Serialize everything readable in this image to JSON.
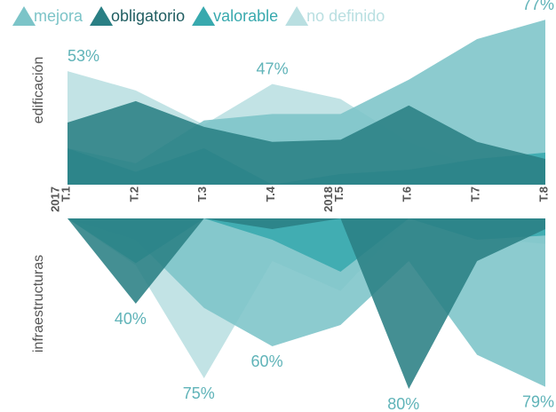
{
  "chart_data": [
    {
      "type": "area",
      "y_label": "edificación",
      "ylim": [
        0,
        80
      ],
      "inverted": false,
      "categories": [
        "T.1",
        "T.2",
        "T.3",
        "T.4",
        "T.5",
        "T.6",
        "T.7",
        "T.8"
      ],
      "years": [
        "2017",
        null,
        null,
        null,
        "2018",
        null,
        null,
        null
      ],
      "series": [
        {
          "name": "no definido",
          "color": "#b9dfe1",
          "values": [
            53,
            44,
            28,
            47,
            40,
            20,
            8,
            5
          ],
          "value_labels": [
            "53%",
            null,
            null,
            "47%",
            null,
            null,
            null,
            null
          ]
        },
        {
          "name": "mejora",
          "color": "#7cc4c8",
          "values": [
            17,
            10,
            30,
            33,
            33,
            49,
            68,
            77
          ],
          "value_labels": [
            null,
            null,
            null,
            null,
            null,
            null,
            null,
            "77%"
          ]
        },
        {
          "name": "valorable",
          "color": "#38a9ae",
          "values": [
            17,
            6,
            17,
            0,
            5,
            7,
            12,
            15
          ]
        },
        {
          "name": "obligatorio",
          "color": "#2a7f84",
          "values": [
            29,
            39,
            27,
            20,
            21,
            37,
            20,
            12
          ]
        }
      ]
    },
    {
      "type": "area",
      "y_label": "infraestructuras",
      "ylim": [
        0,
        80
      ],
      "inverted": true,
      "series": [
        {
          "name": "no definido",
          "color": "#b9dfe1",
          "values": [
            0,
            22,
            75,
            20,
            34,
            0,
            9,
            12
          ],
          "value_labels": [
            null,
            null,
            "75%",
            null,
            null,
            null,
            null,
            null
          ]
        },
        {
          "name": "mejora",
          "color": "#7cc4c8",
          "values": [
            0,
            10,
            42,
            60,
            50,
            20,
            64,
            79
          ],
          "value_labels": [
            null,
            null,
            null,
            "60%",
            null,
            null,
            null,
            "79%"
          ]
        },
        {
          "name": "valorable",
          "color": "#38a9ae",
          "values": [
            0,
            21,
            0,
            10,
            25,
            0,
            10,
            8
          ]
        },
        {
          "name": "obligatorio",
          "color": "#2a7f84",
          "values": [
            0,
            40,
            0,
            5,
            0,
            80,
            20,
            5
          ],
          "value_labels": [
            null,
            "40%",
            null,
            null,
            null,
            "80%",
            null,
            null
          ]
        }
      ]
    }
  ]
}
